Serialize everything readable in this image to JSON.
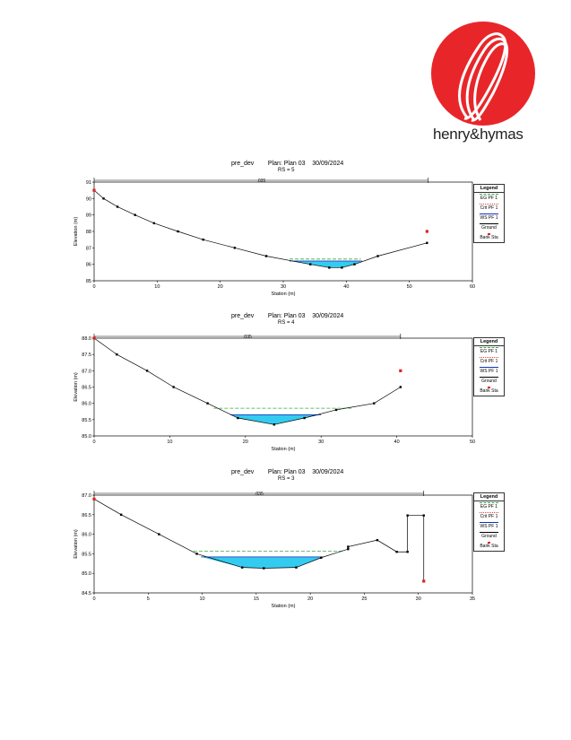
{
  "logo": {
    "text": "henry&hymas",
    "icon": "henry-hymas-logo-icon",
    "color": "#e8262a"
  },
  "legend": {
    "title": "Legend",
    "items": [
      {
        "label": "EG PF 1",
        "color": "#3aa845",
        "style": "dashed"
      },
      {
        "label": "Crit PF 1",
        "color": "#e83a3a",
        "style": "dotted"
      },
      {
        "label": "WS PF 1",
        "color": "#1030c8",
        "style": "solid"
      },
      {
        "label": "Ground",
        "color": "#000000",
        "style": "solid-marker"
      },
      {
        "label": "Bank Sta",
        "color": "#e02020",
        "style": "marker"
      }
    ]
  },
  "colors": {
    "water": "#33ccf0",
    "ground": "#000000",
    "bank": "#e02020",
    "eg": "#3aa845",
    "crit": "#e83a3a"
  },
  "chart_data": [
    {
      "type": "line",
      "title": "pre_dev        Plan: Plan 03    30/09/2024",
      "subtitle": "RS = 5",
      "xlabel": "Station (m)",
      "ylabel": "Elevation (m)",
      "xlim": [
        0,
        60
      ],
      "ylim": [
        85,
        91
      ],
      "xticks": [
        0,
        10,
        20,
        30,
        40,
        50,
        60
      ],
      "yticks": [
        85,
        86,
        87,
        88,
        89,
        90,
        91
      ],
      "manning_label": ".035",
      "manning_range": [
        0,
        53
      ],
      "ground": [
        [
          0,
          90.5
        ],
        [
          1.5,
          90.0
        ],
        [
          3.7,
          89.5
        ],
        [
          6.5,
          89.0
        ],
        [
          9.5,
          88.5
        ],
        [
          13.3,
          88.0
        ],
        [
          17.3,
          87.5
        ],
        [
          22.3,
          87.0
        ],
        [
          27.3,
          86.5
        ],
        [
          34.3,
          86.0
        ],
        [
          37.3,
          85.8
        ],
        [
          39.3,
          85.8
        ],
        [
          41.3,
          86.0
        ],
        [
          45,
          86.5
        ],
        [
          52.8,
          87.3
        ]
      ],
      "bank": [
        [
          0,
          90.5
        ],
        [
          52.8,
          88.0
        ]
      ],
      "ws": {
        "elev": 86.2,
        "from": 31.0,
        "to": 42.5
      },
      "eg": {
        "elev": 86.32,
        "from": 31.0,
        "to": 42.3
      },
      "crit": {
        "elev": 86.2,
        "from": 31.0,
        "to": 42.5
      }
    },
    {
      "type": "line",
      "title": "pre_dev        Plan: Plan 03    30/09/2024",
      "subtitle": "RS = 4",
      "xlabel": "Station (m)",
      "ylabel": "Elevation (m)",
      "xlim": [
        0,
        50
      ],
      "ylim": [
        85.0,
        88.0
      ],
      "xticks": [
        0,
        10,
        20,
        30,
        40,
        50
      ],
      "yticks": [
        "85.0",
        "85.5",
        "86.0",
        "86.5",
        "87.0",
        "87.5",
        "88.0"
      ],
      "manning_label": ".035",
      "manning_range": [
        0,
        40.5
      ],
      "ground": [
        [
          0,
          88.0
        ],
        [
          3,
          87.5
        ],
        [
          7,
          87.0
        ],
        [
          10.5,
          86.5
        ],
        [
          15,
          86.0
        ],
        [
          19,
          85.55
        ],
        [
          23.8,
          85.35
        ],
        [
          27.8,
          85.55
        ],
        [
          32,
          85.8
        ],
        [
          37,
          86.0
        ],
        [
          40.5,
          86.5
        ]
      ],
      "bank": [
        [
          0,
          88.0
        ],
        [
          40.5,
          87.0
        ]
      ],
      "ws": {
        "elev": 85.65,
        "from": 18.0,
        "to": 30.0
      },
      "eg": {
        "elev": 85.85,
        "from": 15.8,
        "to": 34.0
      },
      "crit": {
        "elev": 85.65,
        "from": 18.0,
        "to": 30.0
      }
    },
    {
      "type": "line",
      "title": "pre_dev        Plan: Plan 03    30/09/2024",
      "subtitle": "RS = 3",
      "xlabel": "Station (m)",
      "ylabel": "Elevation (m)",
      "xlim": [
        0,
        35
      ],
      "ylim": [
        84.5,
        87.0
      ],
      "xticks": [
        0,
        5,
        10,
        15,
        20,
        25,
        30,
        35
      ],
      "yticks": [
        "84.5",
        "85.0",
        "85.5",
        "86.0",
        "86.5",
        "87.0"
      ],
      "manning_label": ".035",
      "manning_range": [
        0,
        30.5
      ],
      "ground": [
        [
          0,
          86.9
        ],
        [
          2.5,
          86.5
        ],
        [
          6,
          86.0
        ],
        [
          9.5,
          85.5
        ],
        [
          13.7,
          85.15
        ],
        [
          15.7,
          85.13
        ],
        [
          18.7,
          85.15
        ],
        [
          21,
          85.4
        ],
        [
          23.5,
          85.62
        ],
        [
          23.5,
          85.68
        ],
        [
          26.2,
          85.85
        ],
        [
          28,
          85.55
        ],
        [
          29,
          85.55
        ],
        [
          29,
          86.48
        ],
        [
          30.5,
          86.48
        ],
        [
          30.5,
          84.8
        ]
      ],
      "bank": [
        [
          0,
          86.9
        ],
        [
          30.5,
          84.8
        ]
      ],
      "ws": {
        "elev": 85.42,
        "from": 9.9,
        "to": 21.2
      },
      "eg": {
        "elev": 85.57,
        "from": 9.2,
        "to": 23.0
      },
      "crit": {
        "elev": 85.42,
        "from": 9.9,
        "to": 21.2
      }
    }
  ]
}
